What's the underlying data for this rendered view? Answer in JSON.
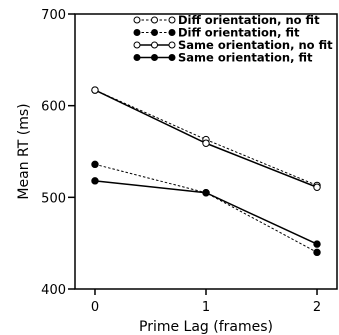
{
  "chart_data": {
    "type": "line",
    "xlabel": "Prime Lag (frames)",
    "ylabel": "Mean RT (ms)",
    "x": [
      0,
      1,
      2
    ],
    "xlim": [
      -0.18,
      2.18
    ],
    "ylim": [
      400,
      700
    ],
    "xticks": [
      0,
      1,
      2
    ],
    "yticks": [
      400,
      500,
      600,
      700
    ],
    "legend_position": "top-right",
    "series": [
      {
        "name": "Diff orientation, no fit",
        "values": [
          617,
          563,
          513
        ],
        "line": "dotted",
        "marker": "open"
      },
      {
        "name": "Diff orientation, fit",
        "values": [
          536,
          505,
          440
        ],
        "line": "dotted",
        "marker": "filled"
      },
      {
        "name": "Same orientation, no fit",
        "values": [
          617,
          559,
          511
        ],
        "line": "solid",
        "marker": "open"
      },
      {
        "name": "Same orientation, fit",
        "values": [
          518,
          505,
          449
        ],
        "line": "solid",
        "marker": "filled"
      }
    ]
  }
}
